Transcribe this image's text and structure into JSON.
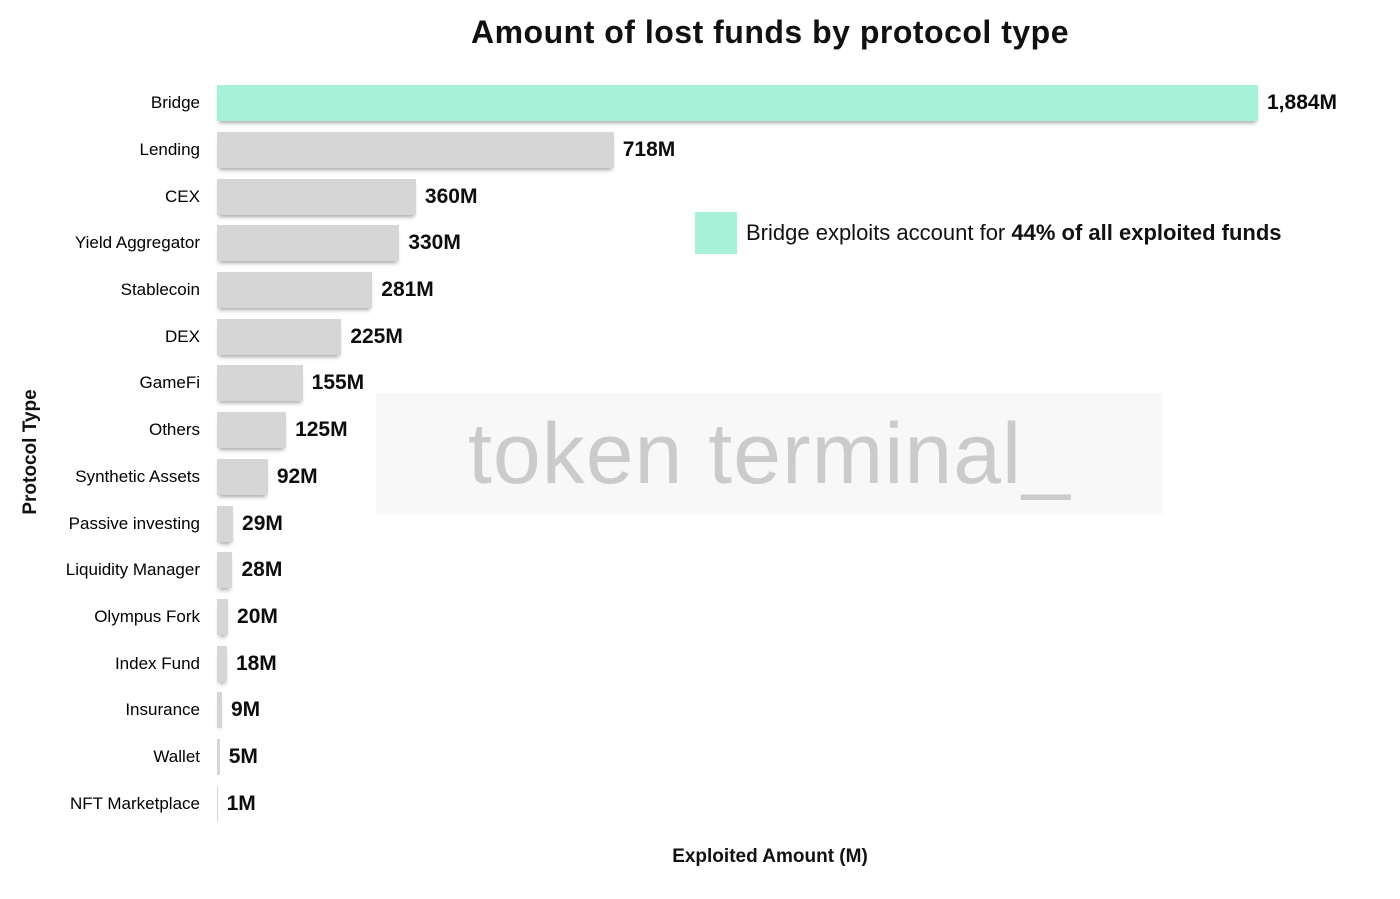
{
  "chart_data": {
    "type": "bar",
    "orientation": "horizontal",
    "title": "Amount of lost funds by protocol type",
    "xlabel": "Exploited Amount (M)",
    "ylabel": "Protocol Type",
    "xlim": [
      0,
      1950
    ],
    "grid": false,
    "categories": [
      "Bridge",
      "Lending",
      "CEX",
      "Yield Aggregator",
      "Stablecoin",
      "DEX",
      "GameFi",
      "Others",
      "Synthetic Assets",
      "Passive investing",
      "Liquidity Manager",
      "Olympus Fork",
      "Index Fund",
      "Insurance",
      "Wallet",
      "NFT Marketplace"
    ],
    "values": [
      1884,
      718,
      360,
      330,
      281,
      225,
      155,
      125,
      92,
      29,
      28,
      20,
      18,
      9,
      5,
      1
    ],
    "value_labels": [
      "1,884M",
      "718M",
      "360M",
      "330M",
      "281M",
      "225M",
      "155M",
      "125M",
      "92M",
      "29M",
      "28M",
      "20M",
      "18M",
      "9M",
      "5M",
      "1M"
    ],
    "highlight_category": "Bridge",
    "colors": {
      "highlight": "#a6f1d8",
      "bar": "#d6d6d6",
      "text": "#111111",
      "watermark": "#cbcbcb"
    },
    "annotation": {
      "swatch_color": "#a6f1d8",
      "text_regular": "Bridge exploits account for ",
      "text_bold": "44% of all exploited funds"
    }
  },
  "watermark": "token terminal_"
}
